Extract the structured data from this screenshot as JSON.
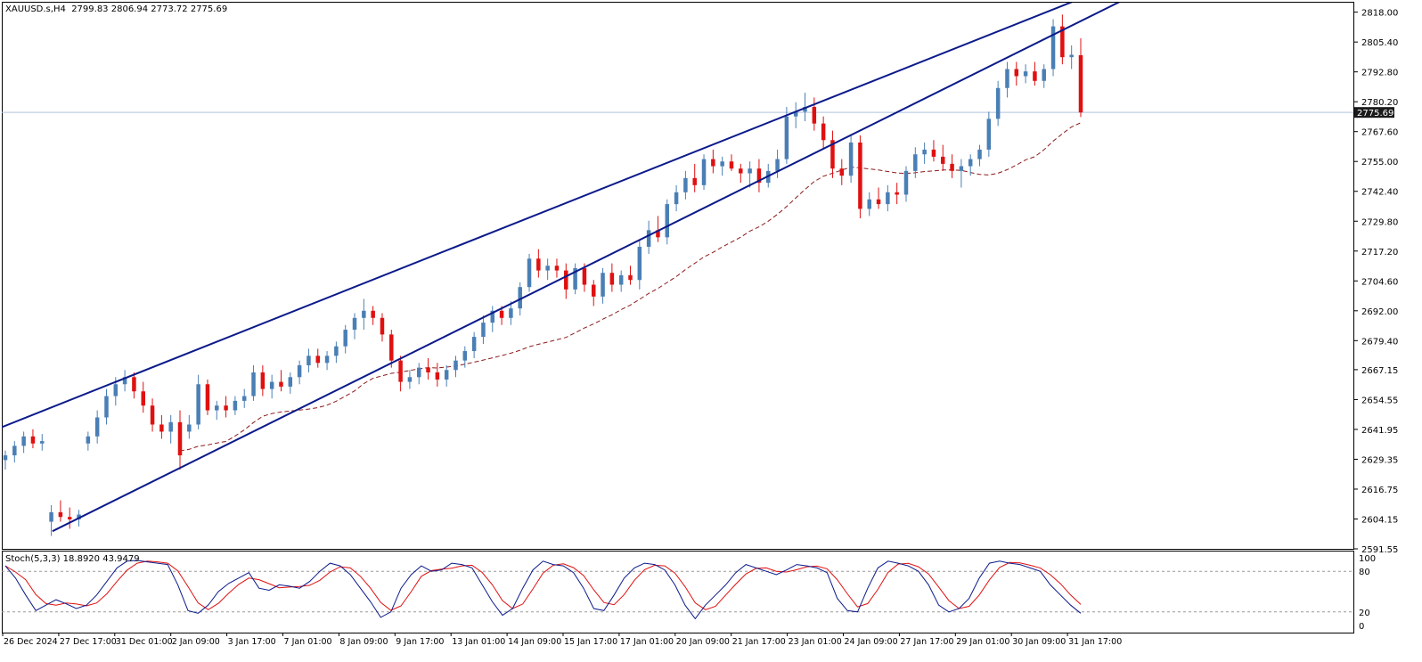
{
  "header": {
    "symbol": "XAUUSD.s,H4",
    "open": "2799.83",
    "high": "2806.94",
    "low": "2773.72",
    "close": "2775.69"
  },
  "stoch_label": {
    "name": "Stoch(5,3,3)",
    "main": "18.8920",
    "signal": "43.9479"
  },
  "colors": {
    "bull": "#4a7fb5",
    "bear": "#e01010",
    "channel": "#0b1a8a",
    "ma": "#8b1a1a",
    "stoch_main": "#0b1a8a",
    "stoch_signal": "#e01010",
    "price_line": "#b0c4de",
    "last_price_bg": "#1a1a1a"
  },
  "chart_data": {
    "type": "candlestick",
    "timeframe": "H4",
    "ylim": [
      2591.55,
      2822
    ],
    "price_ticks": [
      "2818.00",
      "2805.40",
      "2792.80",
      "2780.20",
      "2767.60",
      "2755.00",
      "2742.40",
      "2729.80",
      "2717.20",
      "2704.60",
      "2692.00",
      "2679.40",
      "2667.15",
      "2654.55",
      "2641.95",
      "2629.35",
      "2616.75",
      "2604.15",
      "2591.55"
    ],
    "last_price": "2775.69",
    "time_labels": [
      "26 Dec 2024",
      "27 Dec 17:00",
      "31 Dec 01:00",
      "2 Jan 09:00",
      "3 Jan 17:00",
      "7 Jan 01:00",
      "8 Jan 09:00",
      "9 Jan 17:00",
      "13 Jan 01:00",
      "14 Jan 09:00",
      "15 Jan 17:00",
      "17 Jan 01:00",
      "20 Jan 09:00",
      "21 Jan 17:00",
      "23 Jan 01:00",
      "24 Jan 09:00",
      "27 Jan 17:00",
      "29 Jan 01:00",
      "30 Jan 09:00",
      "31 Jan 17:00"
    ],
    "candles": [
      [
        2629,
        2633,
        2625,
        2631
      ],
      [
        2631,
        2637,
        2628,
        2635
      ],
      [
        2635,
        2641,
        2632,
        2639
      ],
      [
        2639,
        2642,
        2634,
        2636
      ],
      [
        2636,
        2640,
        2633,
        2637
      ],
      [
        2603,
        2610,
        2597,
        2607
      ],
      [
        2607,
        2612,
        2603,
        2605
      ],
      [
        2605,
        2609,
        2600,
        2604
      ],
      [
        2604,
        2608,
        2601,
        2606
      ],
      [
        2636,
        2641,
        2633,
        2639
      ],
      [
        2639,
        2650,
        2636,
        2647
      ],
      [
        2647,
        2659,
        2644,
        2656
      ],
      [
        2656,
        2664,
        2652,
        2661
      ],
      [
        2661,
        2667,
        2658,
        2664
      ],
      [
        2664,
        2666,
        2655,
        2658
      ],
      [
        2658,
        2662,
        2649,
        2652
      ],
      [
        2652,
        2655,
        2641,
        2644
      ],
      [
        2644,
        2648,
        2638,
        2641
      ],
      [
        2641,
        2648,
        2636,
        2645
      ],
      [
        2645,
        2650,
        2625,
        2631
      ],
      [
        2641,
        2648,
        2638,
        2644
      ],
      [
        2644,
        2665,
        2642,
        2661
      ],
      [
        2661,
        2663,
        2648,
        2650
      ],
      [
        2650,
        2654,
        2646,
        2652
      ],
      [
        2652,
        2656,
        2647,
        2650
      ],
      [
        2650,
        2656,
        2648,
        2654
      ],
      [
        2654,
        2659,
        2651,
        2656
      ],
      [
        2656,
        2669,
        2654,
        2666
      ],
      [
        2666,
        2669,
        2656,
        2659
      ],
      [
        2659,
        2665,
        2655,
        2662
      ],
      [
        2662,
        2667,
        2658,
        2660
      ],
      [
        2660,
        2666,
        2657,
        2664
      ],
      [
        2664,
        2671,
        2661,
        2669
      ],
      [
        2669,
        2676,
        2666,
        2673
      ],
      [
        2673,
        2676,
        2668,
        2670
      ],
      [
        2670,
        2675,
        2667,
        2673
      ],
      [
        2673,
        2679,
        2670,
        2677
      ],
      [
        2677,
        2686,
        2674,
        2684
      ],
      [
        2684,
        2691,
        2680,
        2689
      ],
      [
        2689,
        2697,
        2684,
        2692
      ],
      [
        2692,
        2694,
        2686,
        2689
      ],
      [
        2689,
        2691,
        2679,
        2682
      ],
      [
        2682,
        2684,
        2668,
        2671
      ],
      [
        2671,
        2673,
        2658,
        2662
      ],
      [
        2662,
        2667,
        2659,
        2664
      ],
      [
        2664,
        2670,
        2661,
        2668
      ],
      [
        2668,
        2672,
        2663,
        2666
      ],
      [
        2666,
        2670,
        2660,
        2663
      ],
      [
        2663,
        2669,
        2660,
        2667
      ],
      [
        2667,
        2673,
        2664,
        2671
      ],
      [
        2671,
        2677,
        2668,
        2675
      ],
      [
        2675,
        2683,
        2672,
        2681
      ],
      [
        2681,
        2690,
        2678,
        2687
      ],
      [
        2687,
        2694,
        2683,
        2692
      ],
      [
        2692,
        2694,
        2686,
        2689
      ],
      [
        2689,
        2696,
        2686,
        2693
      ],
      [
        2693,
        2704,
        2690,
        2702
      ],
      [
        2702,
        2716,
        2700,
        2714
      ],
      [
        2714,
        2718,
        2706,
        2709
      ],
      [
        2709,
        2714,
        2705,
        2711
      ],
      [
        2711,
        2714,
        2706,
        2709
      ],
      [
        2709,
        2712,
        2697,
        2701
      ],
      [
        2701,
        2712,
        2699,
        2710
      ],
      [
        2710,
        2712,
        2700,
        2703
      ],
      [
        2703,
        2705,
        2694,
        2698
      ],
      [
        2698,
        2710,
        2695,
        2708
      ],
      [
        2708,
        2712,
        2700,
        2703
      ],
      [
        2703,
        2709,
        2700,
        2707
      ],
      [
        2707,
        2711,
        2703,
        2705
      ],
      [
        2705,
        2722,
        2701,
        2719
      ],
      [
        2719,
        2730,
        2716,
        2726
      ],
      [
        2726,
        2732,
        2721,
        2723
      ],
      [
        2723,
        2739,
        2720,
        2737
      ],
      [
        2737,
        2745,
        2734,
        2742
      ],
      [
        2742,
        2751,
        2739,
        2748
      ],
      [
        2748,
        2754,
        2742,
        2745
      ],
      [
        2745,
        2758,
        2743,
        2756
      ],
      [
        2756,
        2760,
        2750,
        2753
      ],
      [
        2753,
        2757,
        2749,
        2755
      ],
      [
        2755,
        2758,
        2751,
        2752
      ],
      [
        2752,
        2754,
        2746,
        2750
      ],
      [
        2750,
        2755,
        2744,
        2752
      ],
      [
        2752,
        2756,
        2742,
        2746
      ],
      [
        2746,
        2754,
        2744,
        2751
      ],
      [
        2751,
        2760,
        2748,
        2756
      ],
      [
        2756,
        2778,
        2754,
        2774
      ],
      [
        2774,
        2780,
        2769,
        2776
      ],
      [
        2776,
        2784,
        2772,
        2778
      ],
      [
        2778,
        2782,
        2768,
        2771
      ],
      [
        2771,
        2774,
        2760,
        2764
      ],
      [
        2764,
        2768,
        2748,
        2752
      ],
      [
        2752,
        2756,
        2745,
        2749
      ],
      [
        2749,
        2766,
        2746,
        2763
      ],
      [
        2763,
        2766,
        2731,
        2735
      ],
      [
        2735,
        2742,
        2732,
        2739
      ],
      [
        2739,
        2744,
        2735,
        2737
      ],
      [
        2737,
        2745,
        2734,
        2742
      ],
      [
        2742,
        2746,
        2737,
        2741
      ],
      [
        2741,
        2753,
        2738,
        2751
      ],
      [
        2751,
        2761,
        2748,
        2758
      ],
      [
        2758,
        2763,
        2754,
        2760
      ],
      [
        2760,
        2764,
        2755,
        2757
      ],
      [
        2757,
        2762,
        2751,
        2754
      ],
      [
        2754,
        2758,
        2748,
        2751
      ],
      [
        2751,
        2756,
        2744,
        2753
      ],
      [
        2753,
        2758,
        2749,
        2756
      ],
      [
        2756,
        2762,
        2753,
        2760
      ],
      [
        2760,
        2776,
        2757,
        2773
      ],
      [
        2773,
        2789,
        2770,
        2786
      ],
      [
        2786,
        2797,
        2782,
        2794
      ],
      [
        2794,
        2797,
        2787,
        2791
      ],
      [
        2791,
        2796,
        2788,
        2793
      ],
      [
        2793,
        2797,
        2787,
        2789
      ],
      [
        2789,
        2796,
        2786,
        2794
      ],
      [
        2794,
        2815,
        2791,
        2812
      ],
      [
        2812,
        2817,
        2796,
        2799
      ],
      [
        2799,
        2804,
        2794,
        2800
      ],
      [
        2799.83,
        2806.94,
        2773.72,
        2775.69
      ]
    ],
    "channel_upper": [
      [
        2642,
        "26 Dec 2024"
      ],
      [
        2822,
        "31 Jan 17:00"
      ]
    ],
    "channel_lower": [
      [
        2599,
        "27 Dec 17:00"
      ],
      [
        2812,
        "31 Jan 17:00"
      ]
    ],
    "stochastic": {
      "name": "Stoch(5,3,3)",
      "levels": [
        20,
        80
      ],
      "ylim": [
        0,
        100
      ],
      "ticks": [
        "100",
        "80",
        "20",
        "0"
      ],
      "main": [
        88,
        70,
        45,
        22,
        30,
        38,
        32,
        25,
        30,
        45,
        65,
        85,
        95,
        96,
        94,
        92,
        90,
        60,
        22,
        18,
        30,
        50,
        62,
        70,
        78,
        55,
        52,
        60,
        58,
        55,
        65,
        80,
        92,
        88,
        75,
        55,
        35,
        12,
        20,
        55,
        75,
        88,
        80,
        82,
        92,
        90,
        85,
        60,
        35,
        15,
        25,
        55,
        82,
        95,
        90,
        88,
        78,
        55,
        25,
        22,
        45,
        70,
        85,
        92,
        90,
        82,
        60,
        30,
        10,
        30,
        45,
        60,
        78,
        90,
        85,
        80,
        75,
        82,
        90,
        88,
        85,
        78,
        40,
        22,
        20,
        55,
        85,
        95,
        92,
        88,
        80,
        60,
        30,
        20,
        25,
        40,
        70,
        92,
        95,
        92,
        90,
        85,
        80,
        60,
        45,
        30,
        18
      ]
    }
  }
}
